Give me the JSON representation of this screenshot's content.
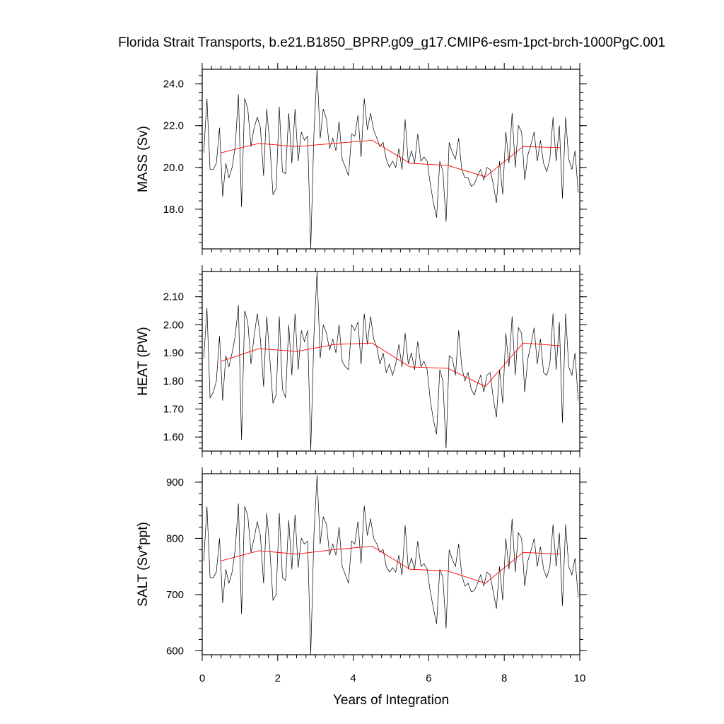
{
  "chart_data": {
    "type": "line",
    "title": "Florida Strait Transports, b.e21.B1850_BPRP.g09_g17.CMIP6-esm-1pct-brch-1000PgC.001",
    "xlabel": "Years of Integration",
    "xlim": [
      0,
      10
    ],
    "xticks": [
      "0",
      "2",
      "4",
      "6",
      "8",
      "10"
    ],
    "x_monthly": [
      0.042,
      0.125,
      0.208,
      0.292,
      0.375,
      0.458,
      0.542,
      0.625,
      0.708,
      0.792,
      0.875,
      0.958,
      1.042,
      1.125,
      1.208,
      1.292,
      1.375,
      1.458,
      1.542,
      1.625,
      1.708,
      1.792,
      1.875,
      1.958,
      2.042,
      2.125,
      2.208,
      2.292,
      2.375,
      2.458,
      2.542,
      2.625,
      2.708,
      2.792,
      2.875,
      2.958,
      3.042,
      3.125,
      3.208,
      3.292,
      3.375,
      3.458,
      3.542,
      3.625,
      3.708,
      3.792,
      3.875,
      3.958,
      4.042,
      4.125,
      4.208,
      4.292,
      4.375,
      4.458,
      4.542,
      4.625,
      4.708,
      4.792,
      4.875,
      4.958,
      5.042,
      5.125,
      5.208,
      5.292,
      5.375,
      5.458,
      5.542,
      5.625,
      5.708,
      5.792,
      5.875,
      5.958,
      6.042,
      6.125,
      6.208,
      6.292,
      6.375,
      6.458,
      6.542,
      6.625,
      6.708,
      6.792,
      6.875,
      6.958,
      7.042,
      7.125,
      7.208,
      7.292,
      7.375,
      7.458,
      7.542,
      7.625,
      7.708,
      7.792,
      7.875,
      7.958,
      8.042,
      8.125,
      8.208,
      8.292,
      8.375,
      8.458,
      8.542,
      8.625,
      8.708,
      8.792,
      8.875,
      8.958,
      9.042,
      9.125,
      9.208,
      9.292,
      9.375,
      9.458,
      9.542,
      9.625,
      9.708,
      9.792,
      9.875,
      9.958
    ],
    "x_annual": [
      0.5,
      1.5,
      2.5,
      3.5,
      4.5,
      5.5,
      6.5,
      7.5,
      8.5,
      9.5
    ],
    "panels": [
      {
        "ylabel": "MASS (Sv)",
        "ylim": [
          16.1,
          24.7
        ],
        "yticks": [
          18.0,
          20.0,
          22.0,
          24.0
        ],
        "ytick_labels": [
          "18.0",
          "20.0",
          "22.0",
          "24.0"
        ],
        "monthly": [
          20.7,
          23.3,
          19.9,
          19.9,
          20.2,
          21.9,
          18.6,
          20.2,
          19.5,
          20.0,
          21.0,
          23.5,
          18.1,
          23.3,
          22.8,
          21.0,
          21.9,
          22.4,
          21.9,
          19.6,
          22.8,
          21.1,
          18.7,
          19.0,
          22.9,
          19.8,
          19.7,
          22.6,
          20.2,
          22.8,
          20.3,
          21.7,
          21.3,
          21.5,
          16.1,
          21.6,
          24.7,
          21.4,
          22.8,
          22.3,
          20.9,
          21.4,
          20.8,
          22.2,
          20.4,
          20.0,
          19.6,
          21.6,
          21.5,
          22.5,
          20.5,
          23.3,
          21.8,
          22.6,
          21.8,
          21.4,
          21.0,
          21.2,
          20.4,
          20.0,
          20.3,
          20.0,
          20.9,
          19.9,
          22.3,
          20.2,
          20.8,
          20.2,
          21.6,
          20.3,
          20.5,
          20.3,
          19.2,
          18.3,
          17.6,
          20.3,
          19.8,
          17.4,
          21.2,
          20.7,
          20.4,
          21.4,
          19.9,
          19.5,
          19.5,
          19.1,
          19.2,
          19.6,
          19.9,
          19.4,
          20.0,
          19.9,
          19.2,
          18.3,
          20.3,
          18.7,
          21.7,
          20.2,
          22.6,
          20.0,
          22.0,
          21.7,
          19.4,
          20.6,
          21.1,
          21.7,
          20.3,
          21.3,
          20.2,
          19.8,
          20.4,
          22.4,
          20.3,
          22.0,
          18.5,
          22.4,
          20.4,
          19.9,
          20.8,
          18.8
        ],
        "annual": [
          20.7,
          21.15,
          21.0,
          21.15,
          21.3,
          20.2,
          20.1,
          19.55,
          21.0,
          20.95
        ]
      },
      {
        "ylabel": "HEAT (PW)",
        "ylim": [
          1.55,
          2.19
        ],
        "yticks": [
          1.6,
          1.7,
          1.8,
          1.9,
          2.0,
          2.1
        ],
        "ytick_labels": [
          "1.60",
          "1.70",
          "1.80",
          "1.90",
          "2.00",
          "2.10"
        ],
        "monthly": [
          1.88,
          2.06,
          1.74,
          1.76,
          1.8,
          1.96,
          1.73,
          1.89,
          1.85,
          1.9,
          1.96,
          2.07,
          1.59,
          2.05,
          2.01,
          1.86,
          1.96,
          2.04,
          1.95,
          1.78,
          2.03,
          1.88,
          1.72,
          1.75,
          2.03,
          1.77,
          1.74,
          2.0,
          1.82,
          2.04,
          1.84,
          1.98,
          1.94,
          1.98,
          1.55,
          1.96,
          2.19,
          1.88,
          2.0,
          1.97,
          1.91,
          1.95,
          1.9,
          2.0,
          1.87,
          1.85,
          1.84,
          2.0,
          1.98,
          2.01,
          1.86,
          2.04,
          1.93,
          2.03,
          1.95,
          1.92,
          1.86,
          1.9,
          1.83,
          1.86,
          1.82,
          1.86,
          1.93,
          1.85,
          1.97,
          1.86,
          1.9,
          1.84,
          1.94,
          1.85,
          1.87,
          1.84,
          1.73,
          1.66,
          1.61,
          1.84,
          1.8,
          1.56,
          1.89,
          1.88,
          1.82,
          1.98,
          1.85,
          1.8,
          1.83,
          1.77,
          1.75,
          1.79,
          1.82,
          1.76,
          1.82,
          1.83,
          1.74,
          1.67,
          1.84,
          1.72,
          1.97,
          1.85,
          2.03,
          1.82,
          1.99,
          1.97,
          1.76,
          1.88,
          1.93,
          1.99,
          1.86,
          1.95,
          1.83,
          1.82,
          1.86,
          2.04,
          1.84,
          2.01,
          1.65,
          2.04,
          1.85,
          1.82,
          1.9,
          1.73
        ],
        "annual": [
          1.87,
          1.915,
          1.905,
          1.93,
          1.935,
          1.85,
          1.845,
          1.78,
          1.935,
          1.925
        ]
      },
      {
        "ylabel": "SALT (Sv*ppt)",
        "ylim": [
          593,
          915
        ],
        "yticks": [
          600,
          700,
          800,
          900
        ],
        "ytick_labels": [
          "600",
          "700",
          "800",
          "900"
        ],
        "monthly": [
          760,
          857,
          730,
          730,
          740,
          800,
          685,
          745,
          720,
          740,
          780,
          862,
          665,
          857,
          840,
          775,
          800,
          830,
          805,
          720,
          845,
          780,
          690,
          700,
          845,
          730,
          725,
          832,
          745,
          842,
          748,
          800,
          790,
          795,
          593,
          805,
          912,
          790,
          838,
          825,
          770,
          790,
          770,
          820,
          750,
          735,
          720,
          795,
          790,
          830,
          755,
          858,
          805,
          835,
          800,
          790,
          775,
          780,
          750,
          740,
          748,
          740,
          770,
          735,
          823,
          745,
          765,
          745,
          795,
          750,
          755,
          745,
          705,
          675,
          648,
          745,
          730,
          640,
          780,
          762,
          750,
          790,
          735,
          715,
          720,
          705,
          707,
          720,
          735,
          715,
          740,
          735,
          705,
          675,
          750,
          690,
          800,
          745,
          835,
          740,
          810,
          800,
          715,
          760,
          778,
          800,
          750,
          785,
          745,
          730,
          750,
          825,
          750,
          810,
          680,
          825,
          750,
          735,
          765,
          695
        ],
        "annual": [
          760,
          778,
          772,
          780,
          786,
          745,
          742,
          720,
          775,
          772
        ]
      }
    ],
    "series": [
      {
        "name": "",
        "color": "#000000"
      },
      {
        "name": "",
        "color": "#ff0000"
      }
    ]
  }
}
